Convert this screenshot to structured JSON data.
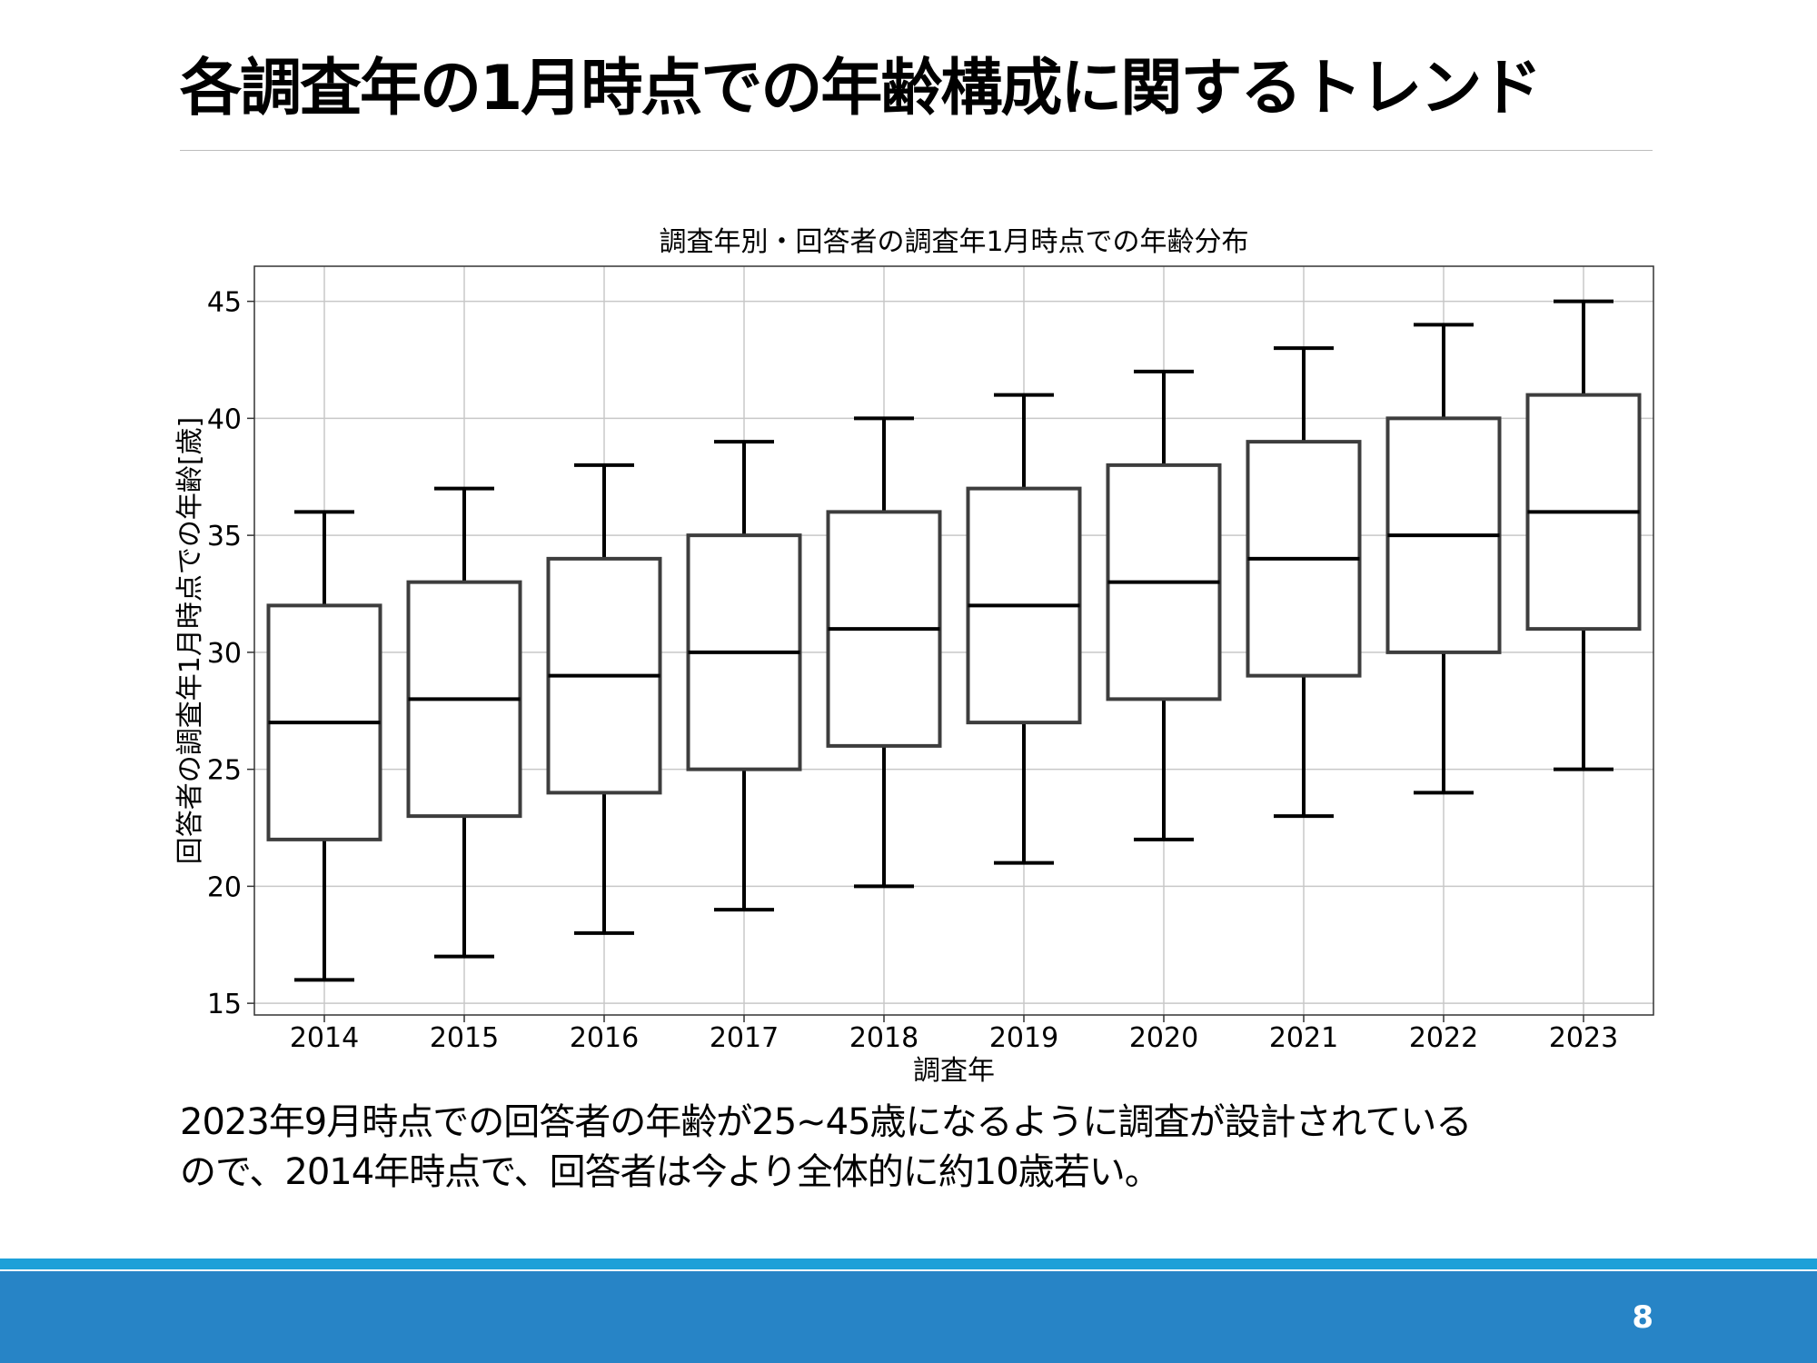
{
  "slide": {
    "title": "各調査年の1月時点での年齢構成に関するトレンド",
    "caption_line1": "2023年9月時点での回答者の年齢が25~45歳になるように調査が設計されている",
    "caption_line2": "ので、2014年時点で、回答者は今より全体的に約10歳若い。",
    "page_number": "8"
  },
  "colors": {
    "footer_stripe": "#1da0d8",
    "footer_band": "#2784c6",
    "box_outline": "#3d3d3d",
    "whisker": "#000000",
    "grid": "#c8c8c8"
  },
  "chart_data": {
    "type": "boxplot",
    "title": "調査年別・回答者の調査年1月時点での年齢分布",
    "xlabel": "調査年",
    "ylabel": "回答者の調査年1月時点での年齢[歳]",
    "ylim": [
      14.5,
      46.5
    ],
    "yticks": [
      15,
      20,
      25,
      30,
      35,
      40,
      45
    ],
    "grid": true,
    "categories": [
      "2014",
      "2015",
      "2016",
      "2017",
      "2018",
      "2019",
      "2020",
      "2021",
      "2022",
      "2023"
    ],
    "boxes": [
      {
        "min": 16,
        "q1": 22,
        "median": 27,
        "q3": 32,
        "max": 36
      },
      {
        "min": 17,
        "q1": 23,
        "median": 28,
        "q3": 33,
        "max": 37
      },
      {
        "min": 18,
        "q1": 24,
        "median": 29,
        "q3": 34,
        "max": 38
      },
      {
        "min": 19,
        "q1": 25,
        "median": 30,
        "q3": 35,
        "max": 39
      },
      {
        "min": 20,
        "q1": 26,
        "median": 31,
        "q3": 36,
        "max": 40
      },
      {
        "min": 21,
        "q1": 27,
        "median": 32,
        "q3": 37,
        "max": 41
      },
      {
        "min": 22,
        "q1": 28,
        "median": 33,
        "q3": 38,
        "max": 42
      },
      {
        "min": 23,
        "q1": 29,
        "median": 34,
        "q3": 39,
        "max": 43
      },
      {
        "min": 24,
        "q1": 30,
        "median": 35,
        "q3": 40,
        "max": 44
      },
      {
        "min": 25,
        "q1": 31,
        "median": 36,
        "q3": 41,
        "max": 45
      }
    ]
  }
}
